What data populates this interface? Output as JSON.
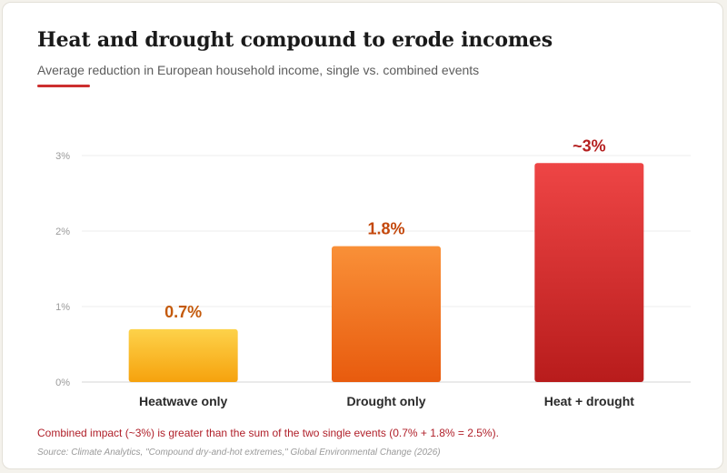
{
  "header": {
    "title": "Heat and drought compound to erode incomes",
    "subtitle": "Average reduction in European household income, single vs. combined events"
  },
  "footer": {
    "note": "Combined impact (~3%) is greater than the sum of the two single events (0.7% + 1.8% = 2.5%).",
    "source": "Source: Climate Analytics, \"Compound dry-and-hot extremes,\" Global Environmental Change (2026)"
  },
  "colors": {
    "accent": "#cc2f2f",
    "heatwave_bar": [
      "#fdd24a",
      "#f6a20d"
    ],
    "drought_bar": [
      "#f99038",
      "#e85b0e"
    ],
    "combined_bar": [
      "#ee4545",
      "#b81c1c"
    ],
    "heatwave_label": "#c45a0c",
    "drought_label": "#c4480c",
    "combined_label": "#b52020"
  },
  "chart_data": {
    "type": "bar",
    "categories": [
      "Heatwave only",
      "Drought only",
      "Heat + drought"
    ],
    "values": [
      0.7,
      1.8,
      2.9
    ],
    "data_labels": [
      "0.7%",
      "1.8%",
      "~3%"
    ],
    "yticks": [
      0,
      1,
      2,
      3
    ],
    "ytick_labels": [
      "0%",
      "1%",
      "2%",
      "3%"
    ],
    "ylim": [
      0,
      3
    ],
    "grid": true,
    "legend": "none"
  }
}
